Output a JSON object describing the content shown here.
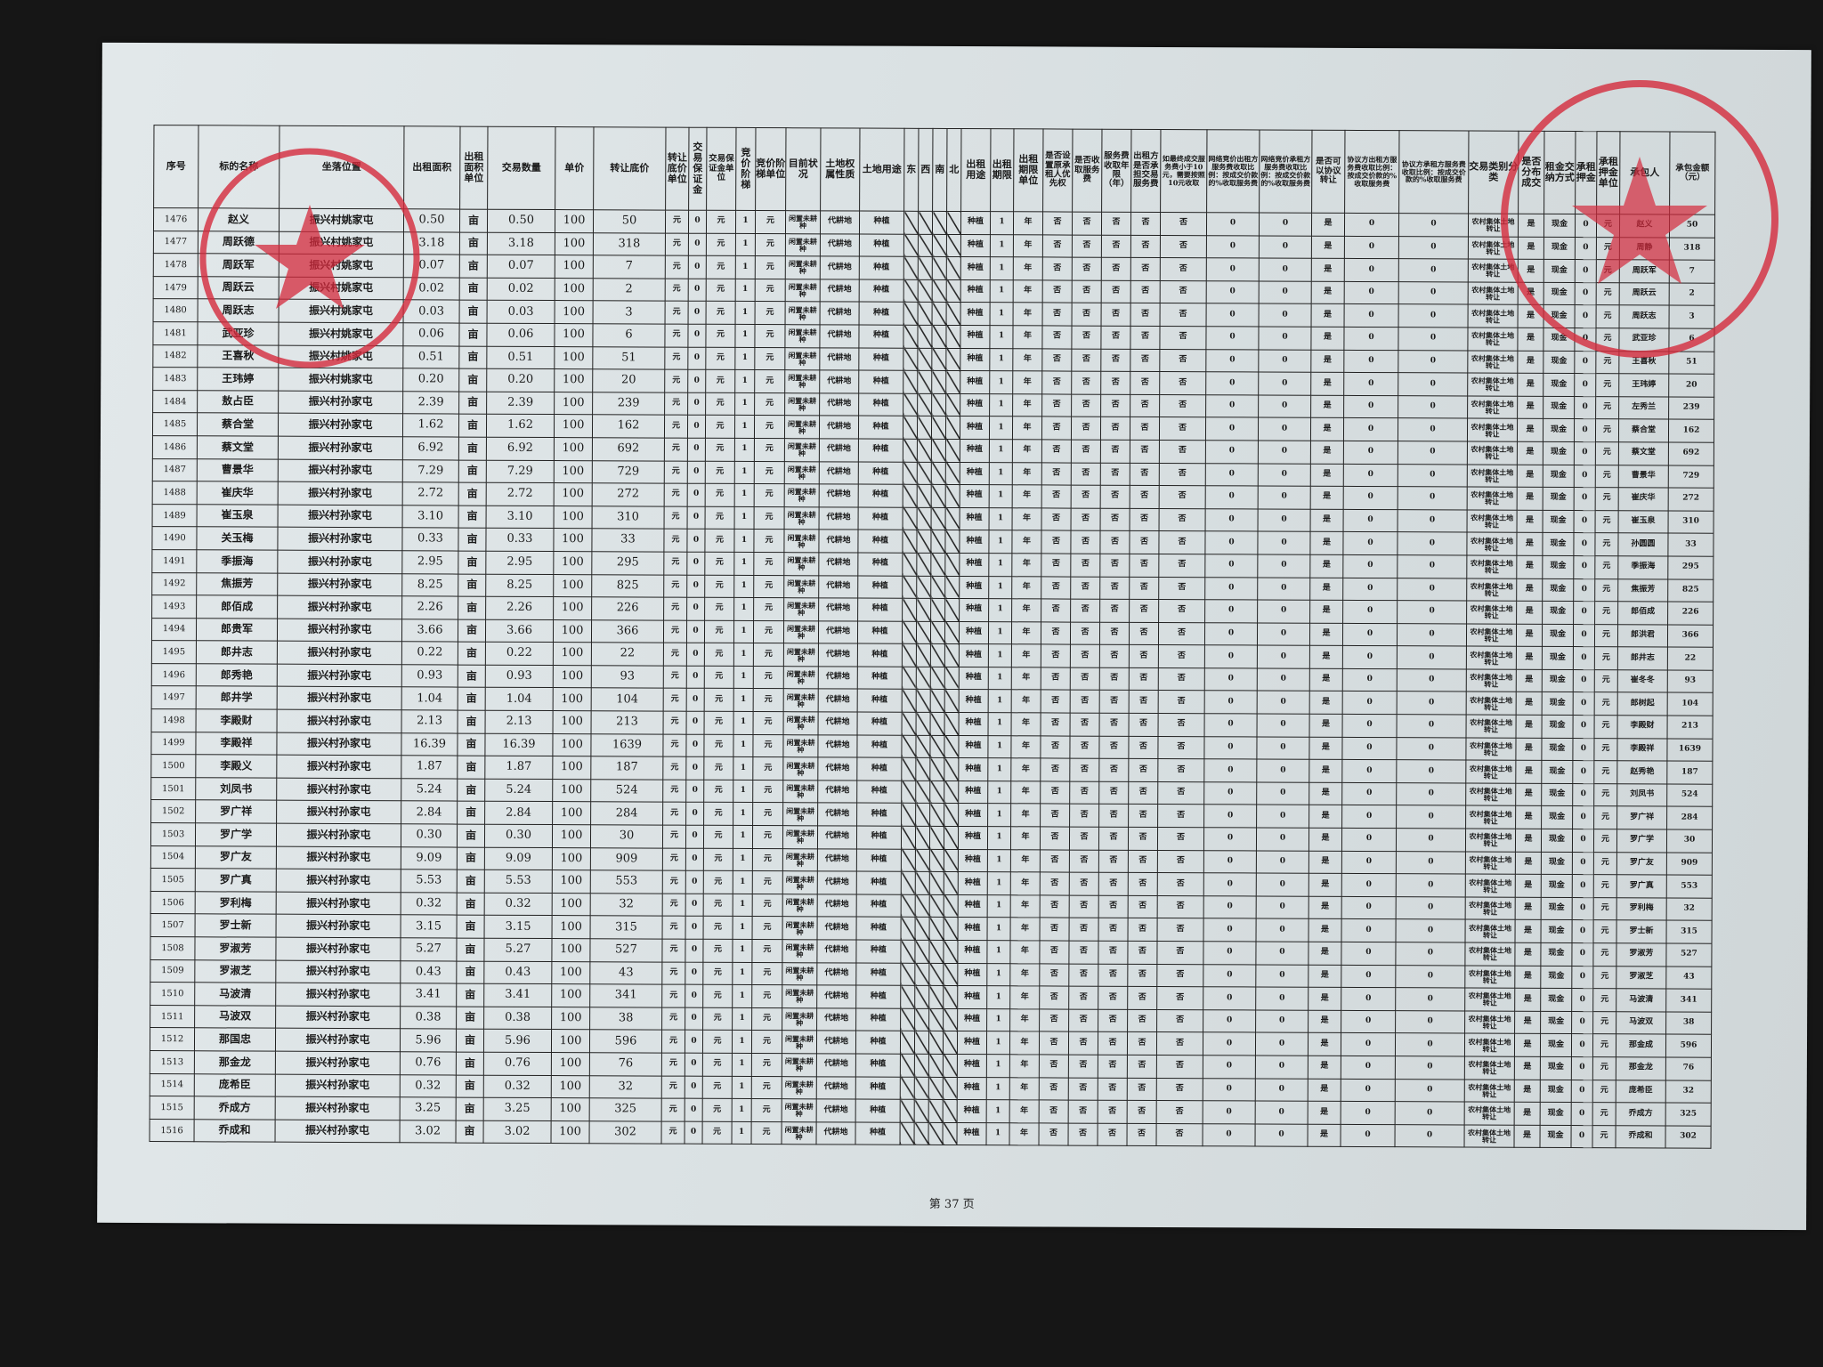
{
  "headers": [
    "序号",
    "标的名称",
    "坐落位置",
    "出租面积",
    "出租面积单位",
    "交易数量",
    "单价",
    "转让底价",
    "转让底价单位",
    "交易保证金",
    "交易保证金单位",
    "竞价阶梯",
    "竞价阶梯单位",
    "目前状况",
    "土地权属性质",
    "土地用途",
    "东",
    "西",
    "南",
    "北",
    "出租用途",
    "出租期限",
    "出租期限单位",
    "是否设置原承租人优先权",
    "是否收取服务费",
    "服务费收取年限（年）",
    "出租方是否承担交易服务费",
    "如最终成交服务费小于10元，需要按照10元收取",
    "网络竞价出租方服务费收取比例：按成交价款的%收取服务费",
    "网络竞价承租方服务费收取比例：按成交价款的%收取服务费",
    "是否可以协议转让",
    "协议方出租方服务费收取比例：按成交价款的%收取服务费",
    "协议方承租方服务费收取比例：按成交价款的%收取服务费",
    "交易类别分类",
    "是否分布成交",
    "租金交纳方式",
    "承租押金",
    "承租押金单位",
    "承包人",
    "承包金额（元）"
  ],
  "common": {
    "area_unit": "亩",
    "price": "100",
    "base_unit": "元",
    "deposit": "0",
    "deposit_unit": "元",
    "step": "1",
    "step_unit": "元",
    "status": "闲置未耕种",
    "ownership": "代耕地",
    "land_use": "种植",
    "east": "",
    "west": "",
    "south": "",
    "north": "",
    "rent_use": "种植",
    "term": "1",
    "term_unit": "年",
    "priority": "否",
    "charge_fee": "否",
    "fee_years": "否",
    "lessor_fee": "否",
    "min_fee": "否",
    "net_lessor_ratio": "0",
    "net_lessee_ratio": "0",
    "negotiable": "是",
    "neg_lessor_ratio": "0",
    "neg_lessee_ratio": "0",
    "category": "农村集体土地转让",
    "staged": "是",
    "payment": "现金",
    "rent_deposit": "0",
    "rent_deposit_unit": "元"
  },
  "rows": [
    {
      "id": "1476",
      "name": "赵义",
      "loc": "振兴村姚家屯",
      "area": "0.50",
      "qty": "0.50",
      "base": "50",
      "contractor": "赵义",
      "amount": "50"
    },
    {
      "id": "1477",
      "name": "周跃德",
      "loc": "振兴村姚家屯",
      "area": "3.18",
      "qty": "3.18",
      "base": "318",
      "contractor": "周静",
      "amount": "318"
    },
    {
      "id": "1478",
      "name": "周跃军",
      "loc": "振兴村姚家屯",
      "area": "0.07",
      "qty": "0.07",
      "base": "7",
      "contractor": "周跃军",
      "amount": "7"
    },
    {
      "id": "1479",
      "name": "周跃云",
      "loc": "振兴村姚家屯",
      "area": "0.02",
      "qty": "0.02",
      "base": "2",
      "contractor": "周跃云",
      "amount": "2"
    },
    {
      "id": "1480",
      "name": "周跃志",
      "loc": "振兴村姚家屯",
      "area": "0.03",
      "qty": "0.03",
      "base": "3",
      "contractor": "周跃志",
      "amount": "3"
    },
    {
      "id": "1481",
      "name": "武亚珍",
      "loc": "振兴村姚家屯",
      "area": "0.06",
      "qty": "0.06",
      "base": "6",
      "contractor": "武亚珍",
      "amount": "6"
    },
    {
      "id": "1482",
      "name": "王喜秋",
      "loc": "振兴村姚家屯",
      "area": "0.51",
      "qty": "0.51",
      "base": "51",
      "contractor": "王喜秋",
      "amount": "51"
    },
    {
      "id": "1483",
      "name": "王玮婷",
      "loc": "振兴村姚家屯",
      "area": "0.20",
      "qty": "0.20",
      "base": "20",
      "contractor": "王玮婷",
      "amount": "20"
    },
    {
      "id": "1484",
      "name": "敖占臣",
      "loc": "振兴村孙家屯",
      "area": "2.39",
      "qty": "2.39",
      "base": "239",
      "contractor": "左秀兰",
      "amount": "239"
    },
    {
      "id": "1485",
      "name": "蔡合堂",
      "loc": "振兴村孙家屯",
      "area": "1.62",
      "qty": "1.62",
      "base": "162",
      "contractor": "蔡合堂",
      "amount": "162"
    },
    {
      "id": "1486",
      "name": "蔡文堂",
      "loc": "振兴村孙家屯",
      "area": "6.92",
      "qty": "6.92",
      "base": "692",
      "contractor": "蔡文堂",
      "amount": "692"
    },
    {
      "id": "1487",
      "name": "曹景华",
      "loc": "振兴村孙家屯",
      "area": "7.29",
      "qty": "7.29",
      "base": "729",
      "contractor": "曹景华",
      "amount": "729"
    },
    {
      "id": "1488",
      "name": "崔庆华",
      "loc": "振兴村孙家屯",
      "area": "2.72",
      "qty": "2.72",
      "base": "272",
      "contractor": "崔庆华",
      "amount": "272"
    },
    {
      "id": "1489",
      "name": "崔玉泉",
      "loc": "振兴村孙家屯",
      "area": "3.10",
      "qty": "3.10",
      "base": "310",
      "contractor": "崔玉泉",
      "amount": "310"
    },
    {
      "id": "1490",
      "name": "关玉梅",
      "loc": "振兴村孙家屯",
      "area": "0.33",
      "qty": "0.33",
      "base": "33",
      "contractor": "孙圆圆",
      "amount": "33"
    },
    {
      "id": "1491",
      "name": "季振海",
      "loc": "振兴村孙家屯",
      "area": "2.95",
      "qty": "2.95",
      "base": "295",
      "contractor": "季振海",
      "amount": "295"
    },
    {
      "id": "1492",
      "name": "焦振芳",
      "loc": "振兴村孙家屯",
      "area": "8.25",
      "qty": "8.25",
      "base": "825",
      "contractor": "焦振芳",
      "amount": "825"
    },
    {
      "id": "1493",
      "name": "郎佰成",
      "loc": "振兴村孙家屯",
      "area": "2.26",
      "qty": "2.26",
      "base": "226",
      "contractor": "郎佰成",
      "amount": "226"
    },
    {
      "id": "1494",
      "name": "郎贵军",
      "loc": "振兴村孙家屯",
      "area": "3.66",
      "qty": "3.66",
      "base": "366",
      "contractor": "郎洪君",
      "amount": "366"
    },
    {
      "id": "1495",
      "name": "郎井志",
      "loc": "振兴村孙家屯",
      "area": "0.22",
      "qty": "0.22",
      "base": "22",
      "contractor": "郎井志",
      "amount": "22"
    },
    {
      "id": "1496",
      "name": "郎秀艳",
      "loc": "振兴村孙家屯",
      "area": "0.93",
      "qty": "0.93",
      "base": "93",
      "contractor": "崔冬冬",
      "amount": "93"
    },
    {
      "id": "1497",
      "name": "郎井学",
      "loc": "振兴村孙家屯",
      "area": "1.04",
      "qty": "1.04",
      "base": "104",
      "contractor": "郎树起",
      "amount": "104"
    },
    {
      "id": "1498",
      "name": "李殿财",
      "loc": "振兴村孙家屯",
      "area": "2.13",
      "qty": "2.13",
      "base": "213",
      "contractor": "李殿财",
      "amount": "213"
    },
    {
      "id": "1499",
      "name": "李殿祥",
      "loc": "振兴村孙家屯",
      "area": "16.39",
      "qty": "16.39",
      "base": "1639",
      "contractor": "李殿祥",
      "amount": "1639"
    },
    {
      "id": "1500",
      "name": "李殿义",
      "loc": "振兴村孙家屯",
      "area": "1.87",
      "qty": "1.87",
      "base": "187",
      "contractor": "赵秀艳",
      "amount": "187"
    },
    {
      "id": "1501",
      "name": "刘凤书",
      "loc": "振兴村孙家屯",
      "area": "5.24",
      "qty": "5.24",
      "base": "524",
      "contractor": "刘凤书",
      "amount": "524"
    },
    {
      "id": "1502",
      "name": "罗广祥",
      "loc": "振兴村孙家屯",
      "area": "2.84",
      "qty": "2.84",
      "base": "284",
      "contractor": "罗广祥",
      "amount": "284"
    },
    {
      "id": "1503",
      "name": "罗广学",
      "loc": "振兴村孙家屯",
      "area": "0.30",
      "qty": "0.30",
      "base": "30",
      "contractor": "罗广学",
      "amount": "30"
    },
    {
      "id": "1504",
      "name": "罗广友",
      "loc": "振兴村孙家屯",
      "area": "9.09",
      "qty": "9.09",
      "base": "909",
      "contractor": "罗广友",
      "amount": "909"
    },
    {
      "id": "1505",
      "name": "罗广真",
      "loc": "振兴村孙家屯",
      "area": "5.53",
      "qty": "5.53",
      "base": "553",
      "contractor": "罗广真",
      "amount": "553"
    },
    {
      "id": "1506",
      "name": "罗利梅",
      "loc": "振兴村孙家屯",
      "area": "0.32",
      "qty": "0.32",
      "base": "32",
      "contractor": "罗利梅",
      "amount": "32"
    },
    {
      "id": "1507",
      "name": "罗士新",
      "loc": "振兴村孙家屯",
      "area": "3.15",
      "qty": "3.15",
      "base": "315",
      "contractor": "罗士新",
      "amount": "315"
    },
    {
      "id": "1508",
      "name": "罗淑芳",
      "loc": "振兴村孙家屯",
      "area": "5.27",
      "qty": "5.27",
      "base": "527",
      "contractor": "罗淑芳",
      "amount": "527"
    },
    {
      "id": "1509",
      "name": "罗淑芝",
      "loc": "振兴村孙家屯",
      "area": "0.43",
      "qty": "0.43",
      "base": "43",
      "contractor": "罗淑芝",
      "amount": "43"
    },
    {
      "id": "1510",
      "name": "马波清",
      "loc": "振兴村孙家屯",
      "area": "3.41",
      "qty": "3.41",
      "base": "341",
      "contractor": "马波清",
      "amount": "341"
    },
    {
      "id": "1511",
      "name": "马波双",
      "loc": "振兴村孙家屯",
      "area": "0.38",
      "qty": "0.38",
      "base": "38",
      "contractor": "马波双",
      "amount": "38"
    },
    {
      "id": "1512",
      "name": "那国忠",
      "loc": "振兴村孙家屯",
      "area": "5.96",
      "qty": "5.96",
      "base": "596",
      "contractor": "那金成",
      "amount": "596"
    },
    {
      "id": "1513",
      "name": "那金龙",
      "loc": "振兴村孙家屯",
      "area": "0.76",
      "qty": "0.76",
      "base": "76",
      "contractor": "那金龙",
      "amount": "76"
    },
    {
      "id": "1514",
      "name": "庞希臣",
      "loc": "振兴村孙家屯",
      "area": "0.32",
      "qty": "0.32",
      "base": "32",
      "contractor": "庞希臣",
      "amount": "32"
    },
    {
      "id": "1515",
      "name": "乔成方",
      "loc": "振兴村孙家屯",
      "area": "3.25",
      "qty": "3.25",
      "base": "325",
      "contractor": "乔成方",
      "amount": "325"
    },
    {
      "id": "1516",
      "name": "乔成和",
      "loc": "振兴村孙家屯",
      "area": "3.02",
      "qty": "3.02",
      "base": "302",
      "contractor": "乔成和",
      "amount": "302"
    }
  ],
  "footer": {
    "page_label": "第 37 页"
  },
  "stamp_color": "#d42a3c"
}
